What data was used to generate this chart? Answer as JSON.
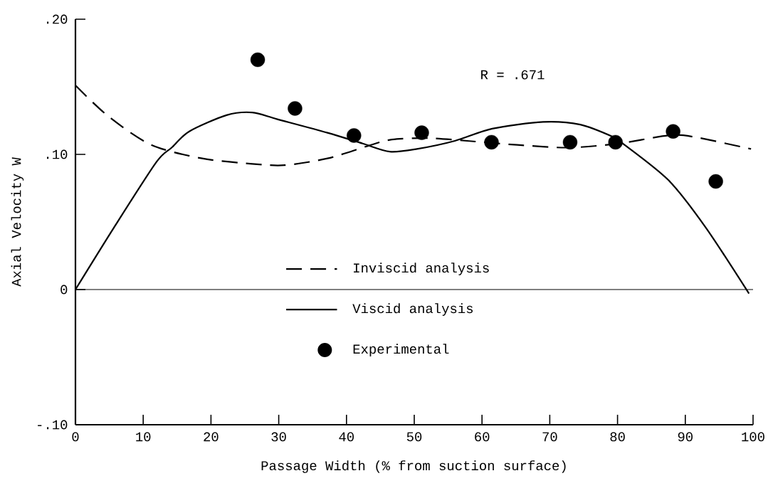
{
  "chart_data": {
    "type": "line",
    "xlabel": "Passage Width (% from suction surface)",
    "ylabel": "Axial Velocity W",
    "xlim": [
      0,
      100
    ],
    "ylim": [
      -0.1,
      0.2
    ],
    "xticks": [
      0,
      10,
      20,
      30,
      40,
      50,
      60,
      70,
      80,
      90,
      100
    ],
    "yticks": [
      {
        "value": -0.1,
        "label": "-.10"
      },
      0,
      {
        "value": 0.1,
        "label": ".10"
      },
      {
        "value": 0.2,
        "label": ".20"
      }
    ],
    "legend": "bottom",
    "annotations": [
      "R = .671"
    ],
    "ref_lines": [
      {
        "axis": "y",
        "value": 0,
        "color": "#000000"
      }
    ],
    "series": [
      {
        "name": "Inviscid analysis",
        "type": "line",
        "line_style": "dashed",
        "marker": "none",
        "color": "#000000",
        "x": [
          0,
          4.9,
          11.2,
          18.7,
          26.1,
          30.9,
          37.2,
          43.0,
          46.7,
          52.2,
          57.8,
          65.2,
          72.7,
          80.1,
          87.5,
          91.2,
          99.7
        ],
        "values": [
          0.151,
          0.128,
          0.107,
          0.097,
          0.093,
          0.092,
          0.097,
          0.106,
          0.111,
          0.112,
          0.11,
          0.107,
          0.105,
          0.108,
          0.114,
          0.113,
          0.104
        ]
      },
      {
        "name": "Viscid analysis",
        "type": "line",
        "line_style": "solid",
        "marker": "none",
        "color": "#000000",
        "x": [
          0,
          5.7,
          11.9,
          14.2,
          16.8,
          22.3,
          26.1,
          29.8,
          37.2,
          42.4,
          46.4,
          50.4,
          56.0,
          61.5,
          69.0,
          74.5,
          79.3,
          80.8,
          87.5,
          93.0,
          99.4
        ],
        "values": [
          0,
          0.046,
          0.094,
          0.105,
          0.117,
          0.129,
          0.131,
          0.126,
          0.116,
          0.108,
          0.102,
          0.104,
          0.11,
          0.119,
          0.124,
          0.122,
          0.113,
          0.108,
          0.081,
          0.046,
          -0.003
        ]
      },
      {
        "name": "Experimental",
        "type": "scatter",
        "marker": "circle",
        "color": "#000000",
        "x": [
          26.9,
          32.4,
          41.1,
          51.1,
          61.4,
          73.0,
          79.7,
          88.2,
          94.5
        ],
        "values": [
          0.17,
          0.134,
          0.114,
          0.116,
          0.109,
          0.109,
          0.109,
          0.117,
          0.08
        ]
      }
    ]
  }
}
